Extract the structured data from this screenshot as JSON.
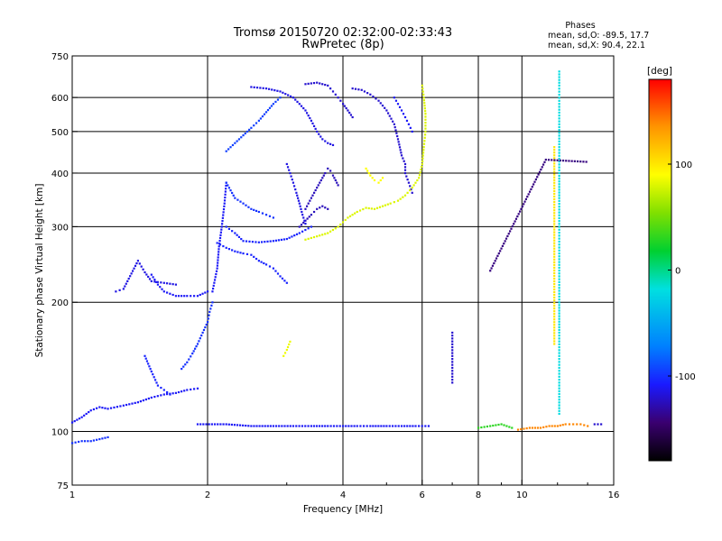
{
  "chart_data": {
    "type": "scatter",
    "title": "Tromsø 20150720 02:32:00-02:33:43",
    "subtitle": "RwPretec (8p)",
    "stats": {
      "heading": "Phases",
      "line_o": "mean, sd,O: -89.5, 17.7",
      "line_x": "mean, sd,X:  90.4, 22.1"
    },
    "xlabel": "Frequency [MHz]",
    "ylabel": "Stationary phase Virtual Height [km]",
    "x_scale": "log",
    "y_scale": "log",
    "xlim": [
      1,
      16
    ],
    "ylim": [
      75,
      750
    ],
    "x_ticks": [
      1,
      2,
      4,
      6,
      8,
      10,
      16
    ],
    "x_tick_labels": [
      "1",
      "2",
      "4",
      "6",
      "8",
      "10",
      "16"
    ],
    "x_minor_ticks": [
      3,
      5,
      7,
      9,
      12,
      14
    ],
    "y_ticks": [
      75,
      100,
      200,
      300,
      400,
      500,
      600,
      750
    ],
    "y_tick_labels": [
      "75",
      "100",
      "200",
      "300",
      "400",
      "500",
      "600",
      "750"
    ],
    "grid_x": [
      2,
      4,
      6,
      8,
      10
    ],
    "grid_y": [
      100,
      200,
      300,
      400,
      500,
      600
    ],
    "grid": true,
    "colorbar": {
      "label": "[deg]",
      "range": [
        -180,
        180
      ],
      "ticks": [
        100,
        0,
        -100
      ],
      "tick_labels": [
        "100",
        "0",
        "-100"
      ]
    },
    "traces": [
      {
        "phase": -100,
        "points": [
          [
            1.0,
            94
          ],
          [
            1.05,
            95
          ],
          [
            1.1,
            95
          ],
          [
            1.15,
            96
          ],
          [
            1.2,
            97
          ]
        ]
      },
      {
        "phase": -110,
        "points": [
          [
            1.0,
            105
          ],
          [
            1.05,
            108
          ],
          [
            1.1,
            112
          ],
          [
            1.15,
            114
          ],
          [
            1.2,
            113
          ],
          [
            1.3,
            115
          ],
          [
            1.4,
            117
          ],
          [
            1.5,
            120
          ],
          [
            1.6,
            122
          ],
          [
            1.7,
            123
          ],
          [
            1.8,
            125
          ],
          [
            1.9,
            126
          ]
        ]
      },
      {
        "phase": -105,
        "points": [
          [
            1.45,
            150
          ],
          [
            1.5,
            138
          ],
          [
            1.55,
            128
          ],
          [
            1.6,
            125
          ],
          [
            1.65,
            122
          ]
        ]
      },
      {
        "phase": -100,
        "points": [
          [
            1.75,
            140
          ],
          [
            1.8,
            145
          ],
          [
            1.85,
            152
          ],
          [
            1.9,
            160
          ],
          [
            1.95,
            170
          ],
          [
            2.0,
            180
          ],
          [
            2.02,
            190
          ],
          [
            2.05,
            200
          ]
        ]
      },
      {
        "phase": -115,
        "points": [
          [
            1.25,
            212
          ],
          [
            1.3,
            215
          ],
          [
            1.4,
            250
          ],
          [
            1.45,
            235
          ],
          [
            1.5,
            224
          ],
          [
            1.6,
            222
          ],
          [
            1.7,
            220
          ]
        ]
      },
      {
        "phase": -110,
        "points": [
          [
            1.5,
            232
          ],
          [
            1.55,
            220
          ],
          [
            1.6,
            212
          ],
          [
            1.7,
            207
          ],
          [
            1.8,
            207
          ],
          [
            1.9,
            207
          ],
          [
            2.0,
            212
          ]
        ]
      },
      {
        "phase": -110,
        "points": [
          [
            2.05,
            212
          ],
          [
            2.1,
            240
          ],
          [
            2.12,
            270
          ],
          [
            2.15,
            300
          ],
          [
            2.18,
            340
          ],
          [
            2.2,
            380
          ]
        ]
      },
      {
        "phase": -105,
        "points": [
          [
            2.1,
            275
          ],
          [
            2.2,
            268
          ],
          [
            2.3,
            263
          ],
          [
            2.4,
            260
          ],
          [
            2.5,
            258
          ],
          [
            2.6,
            250
          ],
          [
            2.7,
            245
          ],
          [
            2.8,
            240
          ],
          [
            2.9,
            230
          ],
          [
            3.0,
            222
          ]
        ]
      },
      {
        "phase": -105,
        "points": [
          [
            2.2,
            300
          ],
          [
            2.3,
            290
          ],
          [
            2.4,
            278
          ],
          [
            2.6,
            276
          ],
          [
            2.8,
            278
          ],
          [
            3.0,
            281
          ],
          [
            3.2,
            290
          ],
          [
            3.4,
            300
          ]
        ]
      },
      {
        "phase": -100,
        "points": [
          [
            2.2,
            380
          ],
          [
            2.3,
            350
          ],
          [
            2.4,
            340
          ],
          [
            2.5,
            330
          ],
          [
            2.6,
            325
          ],
          [
            2.7,
            320
          ],
          [
            2.8,
            315
          ]
        ]
      },
      {
        "phase": -95,
        "points": [
          [
            2.2,
            450
          ],
          [
            2.3,
            470
          ],
          [
            2.4,
            490
          ],
          [
            2.5,
            510
          ],
          [
            2.6,
            530
          ],
          [
            2.7,
            555
          ],
          [
            2.8,
            580
          ],
          [
            2.9,
            600
          ]
        ]
      },
      {
        "phase": -115,
        "points": [
          [
            2.5,
            635
          ],
          [
            2.7,
            630
          ],
          [
            2.9,
            620
          ],
          [
            3.1,
            600
          ],
          [
            3.2,
            580
          ],
          [
            3.3,
            560
          ],
          [
            3.4,
            530
          ],
          [
            3.5,
            500
          ],
          [
            3.6,
            480
          ],
          [
            3.7,
            470
          ],
          [
            3.8,
            465
          ]
        ]
      },
      {
        "phase": -120,
        "points": [
          [
            3.3,
            645
          ],
          [
            3.5,
            650
          ],
          [
            3.7,
            640
          ],
          [
            3.8,
            620
          ],
          [
            3.9,
            600
          ],
          [
            4.0,
            580
          ],
          [
            4.1,
            560
          ],
          [
            4.2,
            540
          ]
        ]
      },
      {
        "phase": -125,
        "points": [
          [
            3.3,
            330
          ],
          [
            3.35,
            340
          ],
          [
            3.4,
            350
          ],
          [
            3.45,
            360
          ],
          [
            3.5,
            370
          ],
          [
            3.55,
            380
          ],
          [
            3.6,
            390
          ],
          [
            3.65,
            400
          ],
          [
            3.7,
            410
          ],
          [
            3.75,
            405
          ],
          [
            3.8,
            395
          ],
          [
            3.85,
            385
          ],
          [
            3.9,
            375
          ]
        ]
      },
      {
        "phase": -125,
        "points": [
          [
            3.2,
            300
          ],
          [
            3.3,
            310
          ],
          [
            3.4,
            320
          ],
          [
            3.5,
            330
          ],
          [
            3.6,
            335
          ],
          [
            3.7,
            330
          ]
        ]
      },
      {
        "phase": -115,
        "points": [
          [
            3.0,
            420
          ],
          [
            3.05,
            400
          ],
          [
            3.1,
            380
          ],
          [
            3.15,
            360
          ],
          [
            3.2,
            340
          ],
          [
            3.25,
            320
          ],
          [
            3.3,
            305
          ]
        ]
      },
      {
        "phase": -120,
        "points": [
          [
            4.2,
            630
          ],
          [
            4.4,
            625
          ],
          [
            4.6,
            610
          ],
          [
            4.8,
            590
          ],
          [
            5.0,
            560
          ],
          [
            5.2,
            520
          ],
          [
            5.3,
            480
          ],
          [
            5.4,
            440
          ],
          [
            5.5,
            420
          ],
          [
            5.5,
            400
          ],
          [
            5.6,
            380
          ],
          [
            5.7,
            360
          ]
        ]
      },
      {
        "phase": -110,
        "points": [
          [
            5.2,
            600
          ],
          [
            5.3,
            580
          ],
          [
            5.4,
            560
          ],
          [
            5.5,
            540
          ],
          [
            5.6,
            520
          ],
          [
            5.7,
            500
          ]
        ]
      },
      {
        "phase": 80,
        "points": [
          [
            3.3,
            280
          ],
          [
            3.5,
            285
          ],
          [
            3.7,
            290
          ],
          [
            3.9,
            300
          ],
          [
            4.1,
            315
          ],
          [
            4.3,
            325
          ],
          [
            4.5,
            332
          ],
          [
            4.7,
            330
          ],
          [
            4.9,
            335
          ],
          [
            5.1,
            340
          ],
          [
            5.3,
            345
          ],
          [
            5.5,
            355
          ],
          [
            5.7,
            370
          ],
          [
            5.9,
            390
          ],
          [
            6.0,
            420
          ],
          [
            6.05,
            460
          ],
          [
            6.1,
            500
          ],
          [
            6.1,
            550
          ],
          [
            6.05,
            600
          ],
          [
            6.0,
            640
          ]
        ]
      },
      {
        "phase": 90,
        "points": [
          [
            4.5,
            410
          ],
          [
            4.6,
            395
          ],
          [
            4.7,
            385
          ],
          [
            4.8,
            380
          ],
          [
            4.9,
            390
          ]
        ]
      },
      {
        "phase": 85,
        "points": [
          [
            2.95,
            150
          ],
          [
            3.0,
            155
          ],
          [
            3.05,
            162
          ]
        ]
      },
      {
        "phase": -110,
        "points": [
          [
            1.9,
            104
          ],
          [
            2.2,
            104
          ],
          [
            2.5,
            103
          ],
          [
            2.8,
            103
          ],
          [
            3.1,
            103
          ],
          [
            3.4,
            103
          ],
          [
            3.7,
            103
          ],
          [
            4.0,
            103
          ],
          [
            4.3,
            103
          ],
          [
            4.6,
            103
          ],
          [
            5.0,
            103
          ],
          [
            5.4,
            103
          ],
          [
            5.8,
            103
          ],
          [
            6.2,
            103
          ]
        ]
      },
      {
        "phase": 140,
        "points": [
          [
            9.8,
            101
          ],
          [
            10.4,
            102
          ],
          [
            11.0,
            102
          ],
          [
            11.5,
            103
          ],
          [
            12.0,
            103
          ],
          [
            12.5,
            104
          ],
          [
            13.0,
            104
          ],
          [
            13.5,
            104
          ],
          [
            14.0,
            103
          ]
        ]
      },
      {
        "phase": -120,
        "points": [
          [
            14.5,
            104
          ],
          [
            15.0,
            104
          ]
        ]
      },
      {
        "phase": 30,
        "points": [
          [
            8.0,
            102
          ],
          [
            8.5,
            103
          ],
          [
            9.0,
            104
          ],
          [
            9.5,
            102
          ]
        ]
      },
      {
        "phase": -20,
        "points": [
          [
            12.1,
            110
          ],
          [
            12.1,
            130
          ],
          [
            12.1,
            150
          ],
          [
            12.1,
            170
          ],
          [
            12.1,
            200
          ],
          [
            12.1,
            230
          ],
          [
            12.1,
            260
          ],
          [
            12.1,
            300
          ],
          [
            12.1,
            350
          ],
          [
            12.1,
            400
          ],
          [
            12.1,
            460
          ],
          [
            12.1,
            520
          ],
          [
            12.1,
            580
          ],
          [
            12.1,
            640
          ],
          [
            12.1,
            690
          ]
        ]
      },
      {
        "phase": 100,
        "points": [
          [
            11.8,
            160
          ],
          [
            11.8,
            300
          ],
          [
            11.8,
            460
          ]
        ]
      },
      {
        "phase": -120,
        "points": [
          [
            7.0,
            130
          ],
          [
            7.0,
            150
          ],
          [
            7.0,
            170
          ]
        ]
      },
      {
        "phase": -140,
        "points": [
          [
            8.5,
            237
          ],
          [
            11.3,
            430
          ],
          [
            13.9,
            425
          ]
        ]
      }
    ]
  }
}
